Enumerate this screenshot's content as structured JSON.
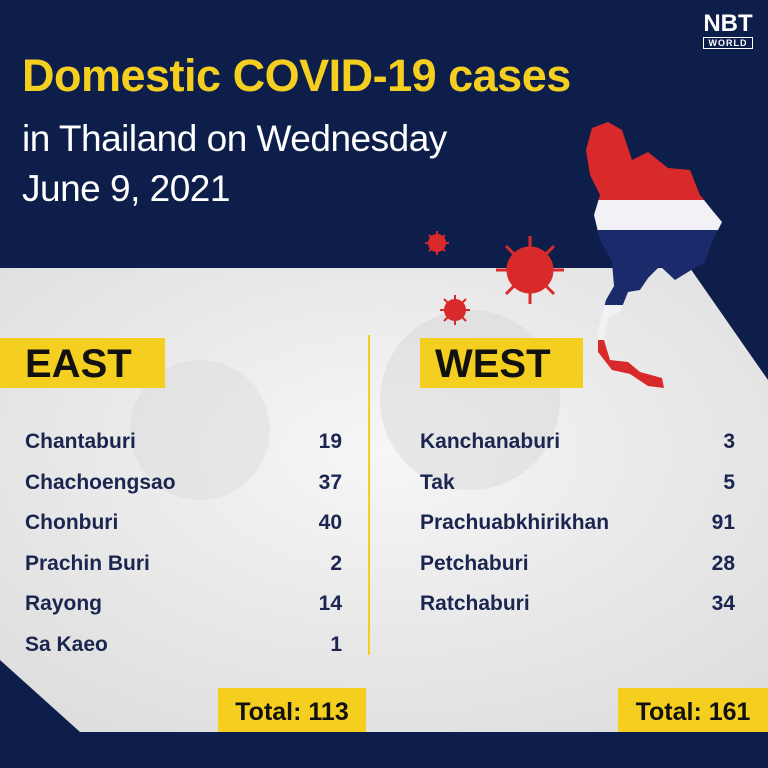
{
  "logo": {
    "main": "NBT",
    "sub": "WORLD"
  },
  "title": "Domestic COVID-19 cases",
  "subtitle_line1": "in Thailand on Wednesday",
  "subtitle_line2": "June 9, 2021",
  "colors": {
    "navy": "#0e1e4a",
    "yellow": "#f5cf1f",
    "red": "#d82a2a",
    "panel": "#ececec"
  },
  "east": {
    "heading": "EAST",
    "rows": [
      {
        "province": "Chantaburi",
        "cases": "19"
      },
      {
        "province": "Chachoengsao",
        "cases": "37"
      },
      {
        "province": "Chonburi",
        "cases": "40"
      },
      {
        "province": "Prachin Buri",
        "cases": "2"
      },
      {
        "province": "Rayong",
        "cases": "14"
      },
      {
        "province": "Sa Kaeo",
        "cases": "1"
      }
    ],
    "total": "Total: 113"
  },
  "west": {
    "heading": "WEST",
    "rows": [
      {
        "province": "Kanchanaburi",
        "cases": "3"
      },
      {
        "province": "Tak",
        "cases": "5"
      },
      {
        "province": "Prachuabkhirikhan",
        "cases": "91"
      },
      {
        "province": "Petchaburi",
        "cases": "28"
      },
      {
        "province": "Ratchaburi",
        "cases": "34"
      }
    ],
    "total": "Total: 161"
  }
}
